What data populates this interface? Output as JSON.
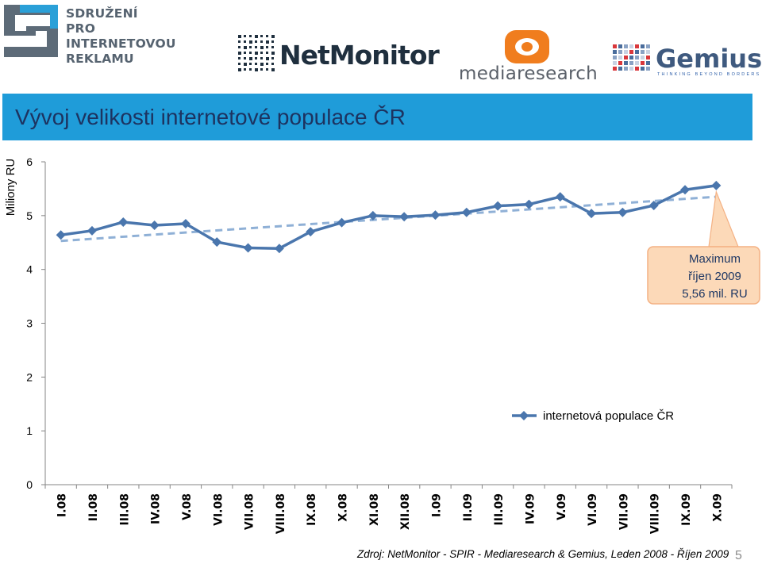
{
  "logos": {
    "spir": {
      "line1": "SDRUŽENÍ",
      "line2": "PRO INTERNETOVOU",
      "line3": "REKLAMU"
    },
    "netmonitor": "NetMonitor",
    "mediaresearch": "mediaresearch",
    "gemius": {
      "name": "Gemius",
      "tagline": "THINKING BEYOND BORDERS"
    }
  },
  "header": {
    "title": "Vývoj velikosti internetové populace ČR"
  },
  "chart_data": {
    "type": "line",
    "ylabel": "Miliony RU",
    "ylim": [
      0,
      6
    ],
    "yticks": [
      "0",
      "1",
      "2",
      "3",
      "4",
      "5",
      "6"
    ],
    "grid": false,
    "categories": [
      "I.08",
      "II.08",
      "III.08",
      "IV.08",
      "V.08",
      "VI.08",
      "VII.08",
      "VIII.08",
      "IX.08",
      "X.08",
      "XI.08",
      "XII.08",
      "I.09",
      "II.09",
      "III.09",
      "IV.09",
      "V.09",
      "VI.09",
      "VII.09",
      "VIII.09",
      "IX.09",
      "X.09"
    ],
    "series": [
      {
        "name": "internetová populace ČR",
        "color": "#4a76ad",
        "marker": "diamond",
        "values": [
          4.64,
          4.72,
          4.88,
          4.82,
          4.85,
          4.51,
          4.4,
          4.39,
          4.7,
          4.87,
          5.0,
          4.98,
          5.01,
          5.06,
          5.18,
          5.21,
          5.35,
          5.04,
          5.06,
          5.19,
          5.48,
          5.56
        ]
      }
    ],
    "trendline": {
      "style": "dashed",
      "color": "#8fb0d6",
      "start": 4.53,
      "end": 5.35
    },
    "legend": {
      "position": "middle-right"
    },
    "annotation": {
      "lines": [
        "Maximum",
        "říjen 2009",
        "5,56 mil. RU"
      ],
      "points_to": "X.09"
    }
  },
  "footer": {
    "source": "Zdroj: NetMonitor - SPIR - Mediaresearch & Gemius, Leden 2008 - Říjen 2009",
    "page": "5"
  }
}
